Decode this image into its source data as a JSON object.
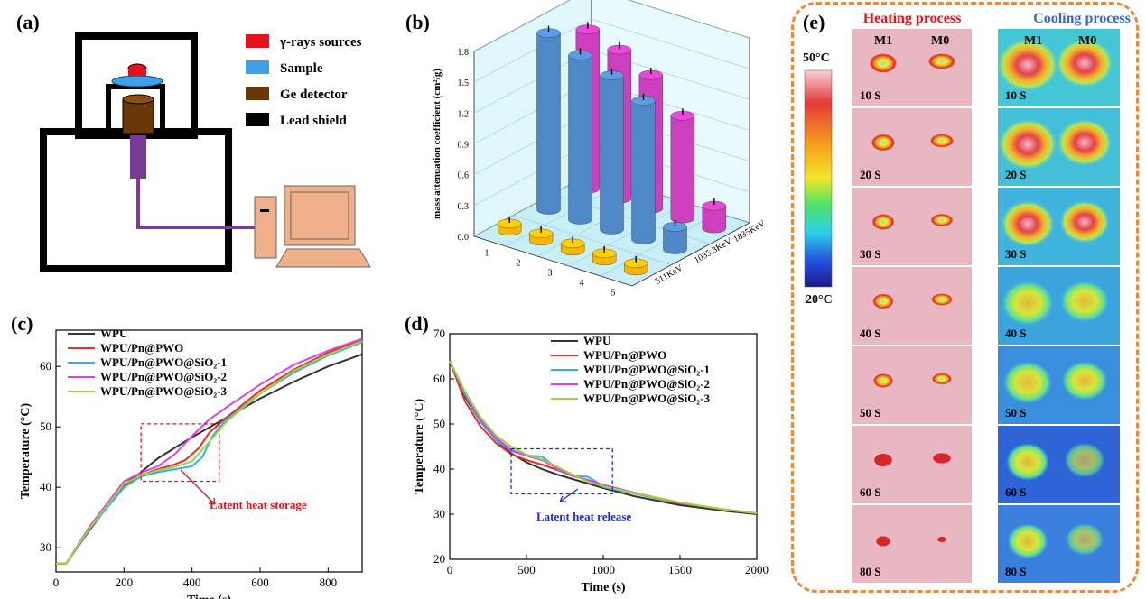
{
  "panels": {
    "a": {
      "label": "(a)",
      "legend": [
        {
          "text": "γ-rays sources",
          "color": "#e5121b"
        },
        {
          "text": "Sample",
          "color": "#3fa0e6"
        },
        {
          "text": "Ge detector",
          "color": "#6b3709"
        },
        {
          "text": "Lead shield",
          "color": "#000000"
        }
      ]
    },
    "b": {
      "label": "(b)",
      "ylabel": "mass attenuation coefficient (cm²/g)",
      "yticks": [
        "0.0",
        "0.3",
        "0.6",
        "0.9",
        "1.2",
        "1.5",
        "1.8"
      ],
      "xticks": [
        "1",
        "2",
        "3",
        "4",
        "5"
      ],
      "zticks": [
        "511KeV",
        "1035.3KeV",
        "1835KeV"
      ]
    },
    "c": {
      "label": "(c)",
      "annotation": "Latent heat storage"
    },
    "d": {
      "label": "(d)",
      "annotation": "Latent heat release"
    },
    "e": {
      "label": "(e)",
      "heating_title": "Heating process",
      "cooling_title": "Cooling process",
      "col_labels": [
        "M1",
        "M0"
      ],
      "scale_top": "50°C",
      "scale_bottom": "20°C",
      "times": [
        "10 S",
        "20 S",
        "30 S",
        "40 S",
        "50 S",
        "60 S",
        "80 S"
      ]
    }
  },
  "chart_data": [
    {
      "type": "bar",
      "title": "",
      "ylabel": "mass attenuation coefficient (cm²/g)",
      "ylim": [
        0,
        1.8
      ],
      "categories": [
        "1",
        "2",
        "3",
        "4",
        "5"
      ],
      "series": [
        {
          "name": "511KeV",
          "values": [
            0.07,
            0.07,
            0.07,
            0.07,
            0.07
          ],
          "color": "#f7b500"
        },
        {
          "name": "1035.3KeV",
          "values": [
            1.72,
            1.6,
            1.5,
            1.35,
            0.22
          ],
          "color": "#4f88c6"
        },
        {
          "name": "1835KeV",
          "values": [
            1.55,
            1.45,
            1.3,
            1.0,
            0.22
          ],
          "color": "#cc3fbd"
        }
      ]
    },
    {
      "type": "line",
      "xlabel": "Time (s)",
      "ylabel": "Temperature (°C)",
      "xlim": [
        0,
        900
      ],
      "ylim": [
        26,
        66
      ],
      "xticks": [
        0,
        200,
        400,
        600,
        800
      ],
      "yticks": [
        30,
        40,
        50,
        60
      ],
      "series": [
        {
          "name": "WPU",
          "color": "#333333",
          "x": [
            0,
            30,
            100,
            200,
            250,
            300,
            400,
            500,
            600,
            700,
            800,
            900
          ],
          "y": [
            27.4,
            27.4,
            33,
            40.5,
            42.5,
            44.8,
            48.3,
            51.5,
            54.7,
            57.5,
            60,
            62
          ]
        },
        {
          "name": "WPU/Pn@PWO",
          "color": "#ee2a2a",
          "x": [
            0,
            30,
            100,
            200,
            250,
            300,
            350,
            380,
            420,
            450,
            500,
            600,
            700,
            800,
            900
          ],
          "y": [
            27.4,
            27.4,
            33.2,
            40.2,
            42,
            43,
            43.8,
            44.5,
            46.5,
            49,
            51.5,
            56,
            59.5,
            62.3,
            64.5
          ]
        },
        {
          "name": "WPU/Pn@PWO@SiO₂-1",
          "color": "#2fb1ee",
          "x": [
            0,
            30,
            100,
            200,
            250,
            300,
            350,
            400,
            430,
            460,
            500,
            600,
            700,
            800,
            900
          ],
          "y": [
            27.4,
            27.4,
            33.2,
            40,
            41.8,
            42.5,
            43,
            43.5,
            45,
            48.5,
            51.2,
            55.5,
            59,
            61.8,
            64
          ]
        },
        {
          "name": "WPU/Pn@PWO@SiO₂-2",
          "color": "#e33fe0",
          "x": [
            0,
            30,
            100,
            200,
            250,
            300,
            350,
            400,
            450,
            500,
            600,
            700,
            800,
            900
          ],
          "y": [
            27.4,
            27.4,
            33.6,
            41,
            42.4,
            43.5,
            45.5,
            48.5,
            51.2,
            53.2,
            57,
            60.3,
            62.6,
            64.6
          ]
        },
        {
          "name": "WPU/Pn@PWO@SiO₂-3",
          "color": "#9ed23a",
          "x": [
            0,
            30,
            100,
            200,
            250,
            300,
            350,
            400,
            450,
            500,
            600,
            700,
            800,
            900
          ],
          "y": [
            27.4,
            27.4,
            33.3,
            40.6,
            42,
            42.8,
            43.4,
            44.3,
            47.5,
            50.8,
            55.5,
            59.3,
            62,
            64.2
          ]
        }
      ]
    },
    {
      "type": "line",
      "xlabel": "Time (s)",
      "ylabel": "Temperature (°C)",
      "xlim": [
        0,
        2000
      ],
      "ylim": [
        20,
        70
      ],
      "xticks": [
        0,
        500,
        1000,
        1500,
        2000
      ],
      "yticks": [
        20,
        30,
        40,
        50,
        60,
        70
      ],
      "series": [
        {
          "name": "WPU",
          "color": "#333333",
          "x": [
            0,
            100,
            200,
            300,
            400,
            500,
            600,
            700,
            800,
            900,
            1000,
            1200,
            1500,
            1800,
            2000
          ],
          "y": [
            64,
            56,
            50.5,
            46.5,
            43.5,
            41.5,
            40,
            38.8,
            37.8,
            36.8,
            35.8,
            34,
            32,
            30.7,
            30
          ]
        },
        {
          "name": "WPU/Pn@PWO",
          "color": "#ee2a2a",
          "x": [
            0,
            100,
            200,
            300,
            400,
            500,
            600,
            700,
            800,
            900,
            1000,
            1200,
            1500,
            1800,
            2000
          ],
          "y": [
            64,
            55,
            49.5,
            45.8,
            43.3,
            42,
            41,
            39.8,
            38.5,
            37.5,
            36.5,
            34.6,
            32.4,
            31,
            30.2
          ]
        },
        {
          "name": "WPU/Pn@PWO@SiO₂-1",
          "color": "#2fb1ee",
          "x": [
            0,
            100,
            200,
            300,
            400,
            500,
            600,
            650,
            700,
            800,
            900,
            950,
            1000,
            1200,
            1500,
            1800,
            2000
          ],
          "y": [
            64,
            56.5,
            50.5,
            46.5,
            44,
            43,
            42.8,
            41.5,
            40,
            38.5,
            38.3,
            37.3,
            36,
            34.6,
            32.5,
            31,
            30.2
          ]
        },
        {
          "name": "WPU/Pn@PWO@SiO₂-2",
          "color": "#e33fe0",
          "x": [
            0,
            100,
            200,
            300,
            400,
            500,
            600,
            700,
            800,
            900,
            1000,
            1200,
            1500,
            1800,
            2000
          ],
          "y": [
            64,
            57,
            51,
            47,
            44.3,
            43,
            42,
            40.2,
            38.5,
            37.6,
            36.5,
            34.8,
            32.5,
            31,
            30.2
          ]
        },
        {
          "name": "WPU/Pn@PWO@SiO₂-3",
          "color": "#9ed23a",
          "x": [
            0,
            100,
            200,
            300,
            400,
            500,
            600,
            700,
            800,
            900,
            1000,
            1200,
            1500,
            1800,
            2000
          ],
          "y": [
            64,
            57.2,
            51.5,
            47.5,
            45,
            43.2,
            42.2,
            40.5,
            38.8,
            37.2,
            36.2,
            34.7,
            32.6,
            31,
            30.2
          ]
        }
      ]
    }
  ]
}
